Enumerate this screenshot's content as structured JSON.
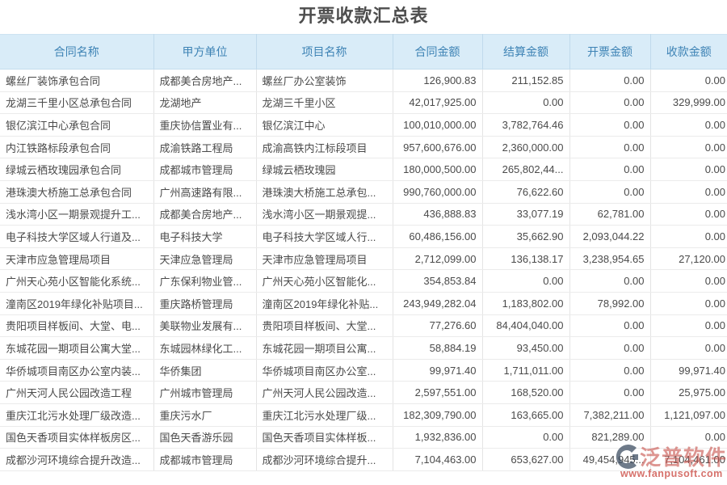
{
  "page": {
    "title": "开票收款汇总表"
  },
  "table": {
    "columns": [
      "合同名称",
      "甲方单位",
      "项目名称",
      "合同金额",
      "结算金额",
      "开票金额",
      "收款金额"
    ],
    "column_keys": [
      "contract-name",
      "party-a-unit",
      "project-name",
      "contract-amount",
      "settlement-amount",
      "invoice-amount",
      "receipt-amount"
    ],
    "rows": [
      [
        "螺丝厂装饰承包合同",
        "成都美合房地产...",
        "螺丝厂办公室装饰",
        "126,900.83",
        "211,152.85",
        "0.00",
        "0.00"
      ],
      [
        "龙湖三千里小区总承包合同",
        "龙湖地产",
        "龙湖三千里小区",
        "42,017,925.00",
        "0.00",
        "0.00",
        "329,999.00"
      ],
      [
        "银亿滨江中心承包合同",
        "重庆协信置业有...",
        "银亿滨江中心",
        "100,010,000.00",
        "3,782,764.46",
        "0.00",
        "0.00"
      ],
      [
        "内江铁路标段承包合同",
        "成渝铁路工程局",
        "成渝高铁内江标段项目",
        "957,600,676.00",
        "2,360,000.00",
        "0.00",
        "0.00"
      ],
      [
        "绿城云栖玫瑰园承包合同",
        "成都城市管理局",
        "绿城云栖玫瑰园",
        "180,000,500.00",
        "265,802,44...",
        "0.00",
        "0.00"
      ],
      [
        "港珠澳大桥施工总承包合同",
        "广州高速路有限...",
        "港珠澳大桥施工总承包...",
        "990,760,000.00",
        "76,622.60",
        "0.00",
        "0.00"
      ],
      [
        "浅水湾小区一期景观提升工...",
        "成都美合房地产...",
        "浅水湾小区一期景观提...",
        "436,888.83",
        "33,077.19",
        "62,781.00",
        "0.00"
      ],
      [
        "电子科技大学区域人行道及...",
        "电子科技大学",
        "电子科技大学区域人行...",
        "60,486,156.00",
        "35,662.90",
        "2,093,044.22",
        "0.00"
      ],
      [
        "天津市应急管理局项目",
        "天津应急管理局",
        "天津市应急管理局项目",
        "2,712,099.00",
        "136,138.17",
        "3,238,954.65",
        "27,120.00"
      ],
      [
        "广州天心苑小区智能化系统...",
        "广东保利物业管...",
        "广州天心苑小区智能化...",
        "354,853.84",
        "0.00",
        "0.00",
        "0.00"
      ],
      [
        "潼南区2019年绿化补贴项目...",
        "重庆路桥管理局",
        "潼南区2019年绿化补贴...",
        "243,949,282.04",
        "1,183,802.00",
        "78,992.00",
        "0.00"
      ],
      [
        "贵阳项目样板间、大堂、电...",
        "美联物业发展有...",
        "贵阳项目样板间、大堂...",
        "77,276.60",
        "84,404,040.00",
        "0.00",
        "0.00"
      ],
      [
        "东城花园一期项目公寓大堂...",
        "东城园林绿化工...",
        "东城花园一期项目公寓...",
        "58,884.19",
        "93,450.00",
        "0.00",
        "0.00"
      ],
      [
        "华侨城项目南区办公室内装...",
        "华侨集团",
        "华侨城项目南区办公室...",
        "99,971.40",
        "1,711,011.00",
        "0.00",
        "99,971.40"
      ],
      [
        "广州天河人民公园改造工程",
        "广州城市管理局",
        "广州天河人民公园改造...",
        "2,597,551.00",
        "168,520.00",
        "0.00",
        "25,975.00"
      ],
      [
        "重庆江北污水处理厂级改造...",
        "重庆污水厂",
        "重庆江北污水处理厂级...",
        "182,309,790.00",
        "163,665.00",
        "7,382,211.00",
        "1,121,097.00"
      ],
      [
        "国色天香项目实体样板房区...",
        "国色天香游乐园",
        "国色天香项目实体样板...",
        "1,932,836.00",
        "0.00",
        "821,289.00",
        "0.00"
      ],
      [
        "成都沙河环境综合提升改造...",
        "成都城市管理局",
        "成都沙河环境综合提升...",
        "7,104,463.00",
        "653,627.00",
        "49,454,945...",
        "7,104,461.00"
      ]
    ]
  },
  "watermark": {
    "brand": "泛普软件",
    "url": "www.fanpusoft.com"
  },
  "colors": {
    "header_bg": "#d9ecf8",
    "header_text": "#3e83b5",
    "cell_text": "#4a4a4a",
    "row_border": "#ebebeb",
    "title_text": "#4d4d4d",
    "watermark_red": "#c8544e",
    "watermark_logo": "#3f4f63"
  }
}
